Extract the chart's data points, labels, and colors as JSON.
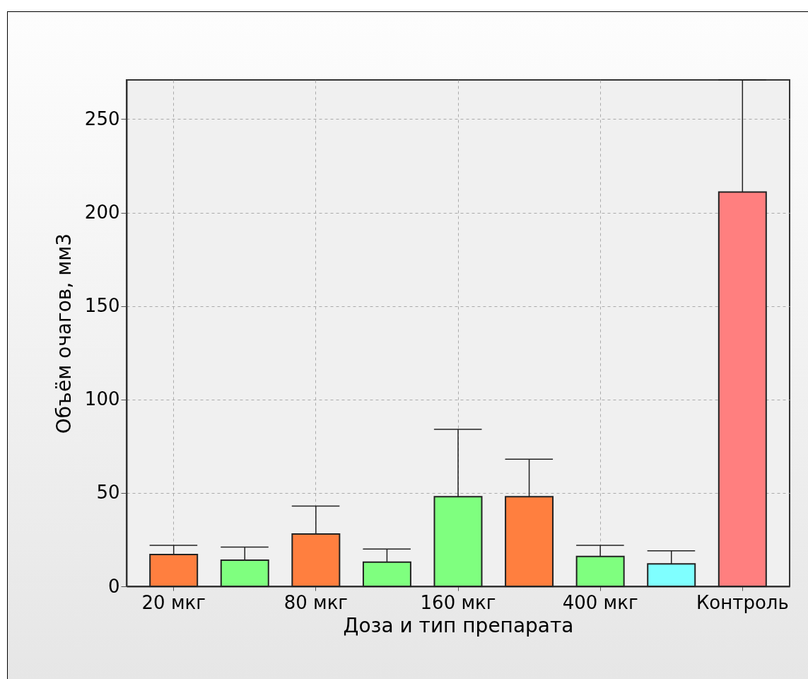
{
  "chart_data": {
    "type": "bar",
    "xlabel": "Доза и тип препарата",
    "ylabel": "Объём очагов, мм3",
    "categories": [
      "20 мкг",
      null,
      "80 мкг",
      null,
      "160 мкг",
      null,
      "400 мкг",
      null,
      "Контроль"
    ],
    "values": [
      17,
      14,
      28,
      13,
      48,
      48,
      16,
      12,
      211
    ],
    "colors": [
      "#ff7f3f",
      "#7fff7f",
      "#ff7f3f",
      "#7fff7f",
      "#7fff7f",
      "#ff7f3f",
      "#7fff7f",
      "#7fffff",
      "#ff7f7f"
    ],
    "errors": [
      [
        17,
        22
      ],
      [
        14,
        21
      ],
      [
        28,
        43
      ],
      [
        13,
        20
      ],
      [
        48,
        84
      ],
      [
        48,
        68
      ],
      [
        16,
        22
      ],
      [
        12,
        19
      ],
      [
        211,
        271
      ]
    ],
    "ylim": [
      0,
      271
    ],
    "yticks": [
      0,
      50,
      100,
      150,
      200,
      250
    ],
    "grid": true
  }
}
